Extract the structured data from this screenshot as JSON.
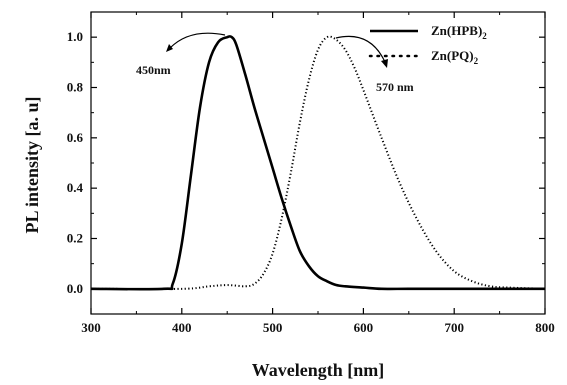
{
  "chart_data": {
    "type": "line",
    "xlabel": "Wavelength [nm]",
    "ylabel": "PL intensity [a. u]",
    "xlim": [
      300,
      800
    ],
    "ylim": [
      -0.1,
      1.1
    ],
    "xticks": [
      300,
      400,
      500,
      600,
      700,
      800
    ],
    "yticks": [
      0.0,
      0.2,
      0.4,
      0.6,
      0.8,
      1.0
    ],
    "grid": false,
    "legend_position": "top-right",
    "series": [
      {
        "name": "Zn(HPB)",
        "name_subscript": "2",
        "style": "solid",
        "color": "#000000",
        "x": [
          300,
          380,
          390,
          400,
          410,
          420,
          430,
          440,
          450,
          455,
          460,
          470,
          480,
          490,
          500,
          510,
          520,
          530,
          540,
          550,
          560,
          570,
          580,
          600,
          620,
          650,
          700,
          800
        ],
        "y": [
          0.0,
          0.0,
          0.02,
          0.18,
          0.45,
          0.72,
          0.9,
          0.98,
          1.0,
          1.0,
          0.97,
          0.85,
          0.72,
          0.6,
          0.48,
          0.36,
          0.25,
          0.15,
          0.09,
          0.05,
          0.03,
          0.015,
          0.01,
          0.005,
          0.0,
          0.0,
          0.0,
          0.0
        ]
      },
      {
        "name": "Zn(PQ)",
        "name_subscript": "2",
        "style": "dotted",
        "color": "#000000",
        "x": [
          300,
          400,
          430,
          450,
          470,
          480,
          490,
          500,
          510,
          520,
          530,
          540,
          550,
          560,
          570,
          580,
          590,
          600,
          620,
          640,
          660,
          680,
          700,
          720,
          740,
          760,
          800
        ],
        "y": [
          0.0,
          0.0,
          0.01,
          0.015,
          0.01,
          0.02,
          0.06,
          0.14,
          0.28,
          0.46,
          0.66,
          0.83,
          0.95,
          1.0,
          0.99,
          0.95,
          0.88,
          0.79,
          0.6,
          0.42,
          0.27,
          0.15,
          0.07,
          0.03,
          0.01,
          0.005,
          0.0
        ]
      }
    ],
    "annotations": [
      {
        "text": "450nm",
        "x": 452,
        "y": 1.0,
        "side": "left"
      },
      {
        "text": "570 nm",
        "x": 567,
        "y": 1.0,
        "side": "right"
      }
    ]
  }
}
